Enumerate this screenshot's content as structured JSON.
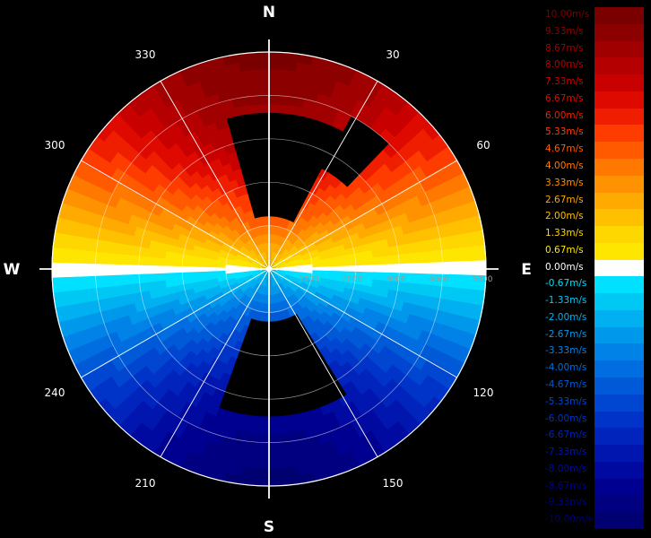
{
  "chart_data": {
    "type": "heatmap",
    "subtype": "radar-ppi-radial-velocity",
    "compass": {
      "north": "N",
      "east": "E",
      "south": "S",
      "west": "W"
    },
    "azimuth_labels": [
      "30",
      "60",
      "120",
      "150",
      "210",
      "240",
      "300",
      "330"
    ],
    "range_labels": [
      "1000",
      "2000",
      "3000",
      "4000",
      "5000"
    ],
    "range_max": 5000,
    "grid": true,
    "legend_position": "right",
    "legend": [
      {
        "label": "10.00m/s",
        "color": "#7a0000"
      },
      {
        "label": "9.33m/s",
        "color": "#8c0000"
      },
      {
        "label": "8.67m/s",
        "color": "#a00000"
      },
      {
        "label": "8.00m/s",
        "color": "#b40000"
      },
      {
        "label": "7.33m/s",
        "color": "#c80000"
      },
      {
        "label": "6.67m/s",
        "color": "#de0a00"
      },
      {
        "label": "6.00m/s",
        "color": "#f01e00"
      },
      {
        "label": "5.33m/s",
        "color": "#ff3c00"
      },
      {
        "label": "4.67m/s",
        "color": "#ff5a00"
      },
      {
        "label": "4.00m/s",
        "color": "#ff7800"
      },
      {
        "label": "3.33m/s",
        "color": "#ff9200"
      },
      {
        "label": "2.67m/s",
        "color": "#ffaa00"
      },
      {
        "label": "2.00m/s",
        "color": "#ffc000"
      },
      {
        "label": "1.33m/s",
        "color": "#ffd700"
      },
      {
        "label": "0.67m/s",
        "color": "#ffe600"
      },
      {
        "label": "0.00m/s",
        "color": "#ffffff"
      },
      {
        "label": "-0.67m/s",
        "color": "#00e0ff"
      },
      {
        "label": "-1.33m/s",
        "color": "#00c8f5"
      },
      {
        "label": "-2.00m/s",
        "color": "#00b0f0"
      },
      {
        "label": "-2.67m/s",
        "color": "#0098eb"
      },
      {
        "label": "-3.33m/s",
        "color": "#0082e6"
      },
      {
        "label": "-4.00m/s",
        "color": "#006ee0"
      },
      {
        "label": "-4.67m/s",
        "color": "#005ad8"
      },
      {
        "label": "-5.33m/s",
        "color": "#0046d0"
      },
      {
        "label": "-6.00m/s",
        "color": "#0034c8"
      },
      {
        "label": "-6.67m/s",
        "color": "#0024bc"
      },
      {
        "label": "-7.33m/s",
        "color": "#0016ae"
      },
      {
        "label": "-8.00m/s",
        "color": "#000aa0"
      },
      {
        "label": "-8.67m/s",
        "color": "#000090"
      },
      {
        "label": "-9.33m/s",
        "color": "#000080"
      },
      {
        "label": "-10.00m/s",
        "color": "#000070"
      }
    ],
    "velocity_field": {
      "value_range": [
        -10,
        10
      ],
      "max_value_by_range": [
        [
          0,
          1.5
        ],
        [
          1000,
          4.5
        ],
        [
          2000,
          6.5
        ],
        [
          3000,
          8.3
        ],
        [
          4000,
          9.3
        ],
        [
          5000,
          10.0
        ]
      ],
      "zero_line_azimuth": 90,
      "no_data_sectors": [
        [
          345,
          30,
          1200,
          3600
        ],
        [
          150,
          200,
          1200,
          3400
        ],
        [
          30,
          45,
          2600,
          4000
        ]
      ]
    }
  }
}
